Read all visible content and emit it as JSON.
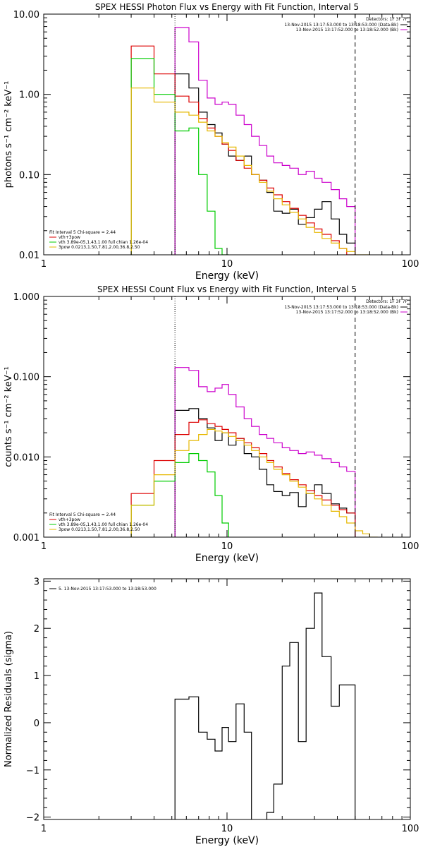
{
  "chart_data": [
    {
      "type": "line",
      "title": "SPEX HESSI Photon Flux vs Energy with Fit Function, Interval 5",
      "xlabel": "Energy (keV)",
      "ylabel": "photons s⁻¹ cm⁻² keV⁻¹",
      "xscale": "log",
      "yscale": "log",
      "xlim": [
        1,
        100
      ],
      "ylim": [
        0.01,
        10
      ],
      "xticks": [
        {
          "v": 1,
          "t": "1"
        },
        {
          "v": 10,
          "t": "10"
        },
        {
          "v": 100,
          "t": "100"
        }
      ],
      "yticks": [
        {
          "v": 0.01,
          "t": "0.01"
        },
        {
          "v": 0.1,
          "t": "0.10"
        },
        {
          "v": 1,
          "t": "1.00"
        },
        {
          "v": 10,
          "t": "10.00"
        }
      ],
      "vlines": [
        {
          "x": 5.2,
          "style": "dotted"
        },
        {
          "x": 50,
          "style": "dashed"
        }
      ],
      "legend_right": {
        "header": "Detectors: 1F 3F 7F",
        "entries": [
          {
            "text": "13-Nov-2015 13:17:53.000 to 13:18:53.000 (Data-Bk)",
            "color": "#000000"
          },
          {
            "text": "13-Nov-2015 13:17:52.000 to 13:18:52.000 (Bk)",
            "color": "#cc00cc"
          }
        ]
      },
      "legend_left": {
        "header": "Fit Interval 5   Chi-square = 2.44",
        "entries": [
          {
            "text": "vth+3pow",
            "color": "#dd0000"
          },
          {
            "text": "vth 3.89e-05,1.43,1.00  full chian 1.26e-04",
            "color": "#00cc00"
          },
          {
            "text": "3pow 0.0213,1.50,7.81,2.00,36.8,2.50",
            "color": "#e6b800"
          }
        ]
      },
      "series": [
        {
          "color": "#000000",
          "edges": [
            5.2,
            6.2,
            7.0,
            7.8,
            8.6,
            9.4,
            10.2,
            11.2,
            12.4,
            13.6,
            15.0,
            16.5,
            18.0,
            20.0,
            22.0,
            24.5,
            27.0,
            30.0,
            33.0,
            37.0,
            41.0,
            45.0,
            50.0
          ],
          "values": [
            1.8,
            1.2,
            0.6,
            0.42,
            0.33,
            0.24,
            0.17,
            0.15,
            0.17,
            0.1,
            0.085,
            0.06,
            0.035,
            0.033,
            0.037,
            0.024,
            0.029,
            0.037,
            0.046,
            0.028,
            0.018,
            0.014
          ]
        },
        {
          "color": "#cc00cc",
          "edges": [
            5.2,
            6.2,
            7.0,
            7.8,
            8.6,
            9.4,
            10.2,
            11.2,
            12.4,
            13.6,
            15.0,
            16.5,
            18.0,
            20.0,
            22.0,
            24.5,
            27.0,
            30.0,
            33.0,
            37.0,
            41.0,
            45.0,
            50.0
          ],
          "values": [
            6.8,
            4.5,
            1.5,
            0.9,
            0.75,
            0.8,
            0.75,
            0.55,
            0.42,
            0.3,
            0.23,
            0.17,
            0.14,
            0.13,
            0.12,
            0.1,
            0.11,
            0.09,
            0.08,
            0.065,
            0.05,
            0.04
          ]
        },
        {
          "color": "#dd0000",
          "edges": [
            3.0,
            4.0,
            5.2,
            6.2,
            7.0,
            7.8,
            8.6,
            9.4,
            10.2,
            11.2,
            12.4,
            13.6,
            15.0,
            16.5,
            18.0,
            20.0,
            22.0,
            24.5,
            27.0,
            30.0,
            33.0,
            37.0,
            41.0,
            45.0,
            50.0
          ],
          "values": [
            4.0,
            1.8,
            0.95,
            0.8,
            0.5,
            0.38,
            0.3,
            0.24,
            0.2,
            0.15,
            0.12,
            0.1,
            0.085,
            0.068,
            0.056,
            0.046,
            0.038,
            0.031,
            0.025,
            0.021,
            0.018,
            0.015,
            0.012,
            0.01
          ]
        },
        {
          "color": "#00cc00",
          "edges": [
            3.0,
            4.0,
            5.2,
            6.2,
            7.0,
            7.8,
            8.6,
            9.4,
            10.2
          ],
          "values": [
            2.8,
            1.0,
            0.35,
            0.38,
            0.1,
            0.035,
            0.012,
            0.01
          ]
        },
        {
          "color": "#e6b800",
          "edges": [
            3.0,
            4.0,
            5.2,
            6.2,
            7.0,
            7.8,
            8.6,
            9.4,
            10.2,
            11.2,
            12.4,
            13.6,
            15.0,
            16.5,
            18.0,
            20.0,
            22.0,
            24.5,
            27.0,
            30.0,
            33.0,
            37.0,
            41.0,
            45.0,
            50.0,
            55.0,
            60.0
          ],
          "values": [
            1.2,
            0.8,
            0.6,
            0.55,
            0.45,
            0.35,
            0.3,
            0.25,
            0.22,
            0.17,
            0.13,
            0.1,
            0.08,
            0.062,
            0.05,
            0.042,
            0.034,
            0.028,
            0.022,
            0.019,
            0.016,
            0.014,
            0.012,
            0.011,
            0.01,
            0.01
          ]
        }
      ]
    },
    {
      "type": "line",
      "title": "SPEX HESSI Count Flux vs Energy with Fit Function, Interval 5",
      "xlabel": "Energy (keV)",
      "ylabel": "counts s⁻¹ cm⁻² keV⁻¹",
      "xscale": "log",
      "yscale": "log",
      "xlim": [
        1,
        100
      ],
      "ylim": [
        0.001,
        1
      ],
      "xticks": [
        {
          "v": 1,
          "t": "1"
        },
        {
          "v": 10,
          "t": "10"
        },
        {
          "v": 100,
          "t": "100"
        }
      ],
      "yticks": [
        {
          "v": 0.001,
          "t": "0.001"
        },
        {
          "v": 0.01,
          "t": "0.010"
        },
        {
          "v": 0.1,
          "t": "0.100"
        },
        {
          "v": 1,
          "t": "1.000"
        }
      ],
      "vlines": [
        {
          "x": 5.2,
          "style": "dotted"
        },
        {
          "x": 50,
          "style": "dashed"
        }
      ],
      "legend_right": {
        "header": "Detectors: 1F 3F 7F",
        "entries": [
          {
            "text": "13-Nov-2015 13:17:53.000 to 13:18:53.000 (Data-Bk)",
            "color": "#000000"
          },
          {
            "text": "13-Nov-2015 13:17:52.000 to 13:18:52.000 (Bk)",
            "color": "#cc00cc"
          }
        ]
      },
      "legend_left": {
        "header": "Fit Interval 5   Chi-square = 2.44",
        "entries": [
          {
            "text": "vth+3pow",
            "color": "#dd0000"
          },
          {
            "text": "vth 3.89e-05,1.43,1.00  full chian 1.26e-04",
            "color": "#00cc00"
          },
          {
            "text": "3pow 0.0213,1.50,7.81,2.00,36.8,2.50",
            "color": "#e6b800"
          }
        ]
      },
      "series": [
        {
          "color": "#000000",
          "edges": [
            5.2,
            6.2,
            7.0,
            7.8,
            8.6,
            9.4,
            10.2,
            11.2,
            12.4,
            13.6,
            15.0,
            16.5,
            18.0,
            20.0,
            22.0,
            24.5,
            27.0,
            30.0,
            33.0,
            37.0,
            41.0,
            45.0,
            50.0
          ],
          "values": [
            0.038,
            0.04,
            0.03,
            0.023,
            0.016,
            0.02,
            0.014,
            0.017,
            0.011,
            0.01,
            0.007,
            0.0045,
            0.0037,
            0.0033,
            0.0036,
            0.0024,
            0.0035,
            0.0045,
            0.0035,
            0.0026,
            0.0023,
            0.002
          ]
        },
        {
          "color": "#cc00cc",
          "edges": [
            5.2,
            6.2,
            7.0,
            7.8,
            8.6,
            9.4,
            10.2,
            11.2,
            12.4,
            13.6,
            15.0,
            16.5,
            18.0,
            20.0,
            22.0,
            24.5,
            27.0,
            30.0,
            33.0,
            37.0,
            41.0,
            45.0,
            50.0
          ],
          "values": [
            0.13,
            0.12,
            0.075,
            0.065,
            0.072,
            0.08,
            0.06,
            0.042,
            0.03,
            0.024,
            0.019,
            0.017,
            0.015,
            0.013,
            0.012,
            0.011,
            0.0115,
            0.0105,
            0.0095,
            0.0085,
            0.0075,
            0.0066
          ]
        },
        {
          "color": "#dd0000",
          "edges": [
            3.0,
            4.0,
            5.2,
            6.2,
            7.0,
            7.8,
            8.6,
            9.4,
            10.2,
            11.2,
            12.4,
            13.6,
            15.0,
            16.5,
            18.0,
            20.0,
            22.0,
            24.5,
            27.0,
            30.0,
            33.0,
            37.0,
            41.0,
            45.0,
            50.0
          ],
          "values": [
            0.0035,
            0.009,
            0.019,
            0.027,
            0.029,
            0.026,
            0.024,
            0.022,
            0.02,
            0.017,
            0.015,
            0.013,
            0.011,
            0.009,
            0.0075,
            0.0062,
            0.0052,
            0.0045,
            0.0038,
            0.0033,
            0.0029,
            0.0025,
            0.0022,
            0.002
          ]
        },
        {
          "color": "#00cc00",
          "edges": [
            3.0,
            4.0,
            5.2,
            6.2,
            7.0,
            7.8,
            8.6,
            9.4,
            10.2
          ],
          "values": [
            0.0025,
            0.005,
            0.0085,
            0.011,
            0.009,
            0.0065,
            0.0033,
            0.0015
          ]
        },
        {
          "color": "#e6b800",
          "edges": [
            3.0,
            4.0,
            5.2,
            6.2,
            7.0,
            7.8,
            8.6,
            9.4,
            10.2,
            11.2,
            12.4,
            13.6,
            15.0,
            16.5,
            18.0,
            20.0,
            22.0,
            24.5,
            27.0,
            30.0,
            33.0,
            37.0,
            41.0,
            45.0,
            50.0,
            55.0,
            60.0,
            66.0
          ],
          "values": [
            0.0025,
            0.006,
            0.012,
            0.016,
            0.019,
            0.022,
            0.021,
            0.02,
            0.018,
            0.016,
            0.014,
            0.012,
            0.01,
            0.0085,
            0.007,
            0.006,
            0.005,
            0.0042,
            0.0035,
            0.003,
            0.0025,
            0.0021,
            0.0018,
            0.0015,
            0.0012,
            0.0011,
            0.001
          ]
        }
      ]
    },
    {
      "type": "line",
      "title": "",
      "xlabel": "Energy (keV)",
      "ylabel": "Normalized Residuals (sigma)",
      "xscale": "log",
      "yscale": "linear",
      "xlim": [
        1,
        100
      ],
      "ylim": [
        -2.05,
        3.05
      ],
      "xticks": [
        {
          "v": 1,
          "t": "1"
        },
        {
          "v": 10,
          "t": "10"
        },
        {
          "v": 100,
          "t": "100"
        }
      ],
      "yticks": [
        {
          "v": -2,
          "t": "−2"
        },
        {
          "v": -1,
          "t": "−1"
        },
        {
          "v": 0,
          "t": "0"
        },
        {
          "v": 1,
          "t": "1"
        },
        {
          "v": 2,
          "t": "2"
        },
        {
          "v": 3,
          "t": "3"
        }
      ],
      "legend_left": {
        "header": "",
        "entries": [
          {
            "text": "5. 13-Nov-2015 13:17:53.000 to 13:18:53.000",
            "color": "#000000"
          }
        ]
      },
      "series": [
        {
          "color": "#000000",
          "edges": [
            5.2,
            6.2,
            7.0,
            7.8,
            8.6,
            9.4,
            10.2,
            11.2,
            12.4,
            13.6,
            15.0,
            16.5,
            18.0,
            20.0,
            22.0,
            24.5,
            27.0,
            30.0,
            33.0,
            37.0,
            41.0,
            45.0,
            50.0
          ],
          "values": [
            0.5,
            0.55,
            -0.2,
            -0.35,
            -0.6,
            -0.1,
            -0.4,
            0.4,
            -0.2,
            -2.1,
            -2.1,
            -1.9,
            -1.3,
            1.2,
            1.7,
            -0.4,
            2.0,
            2.75,
            1.4,
            0.35,
            0.8,
            0.8
          ]
        }
      ]
    }
  ]
}
